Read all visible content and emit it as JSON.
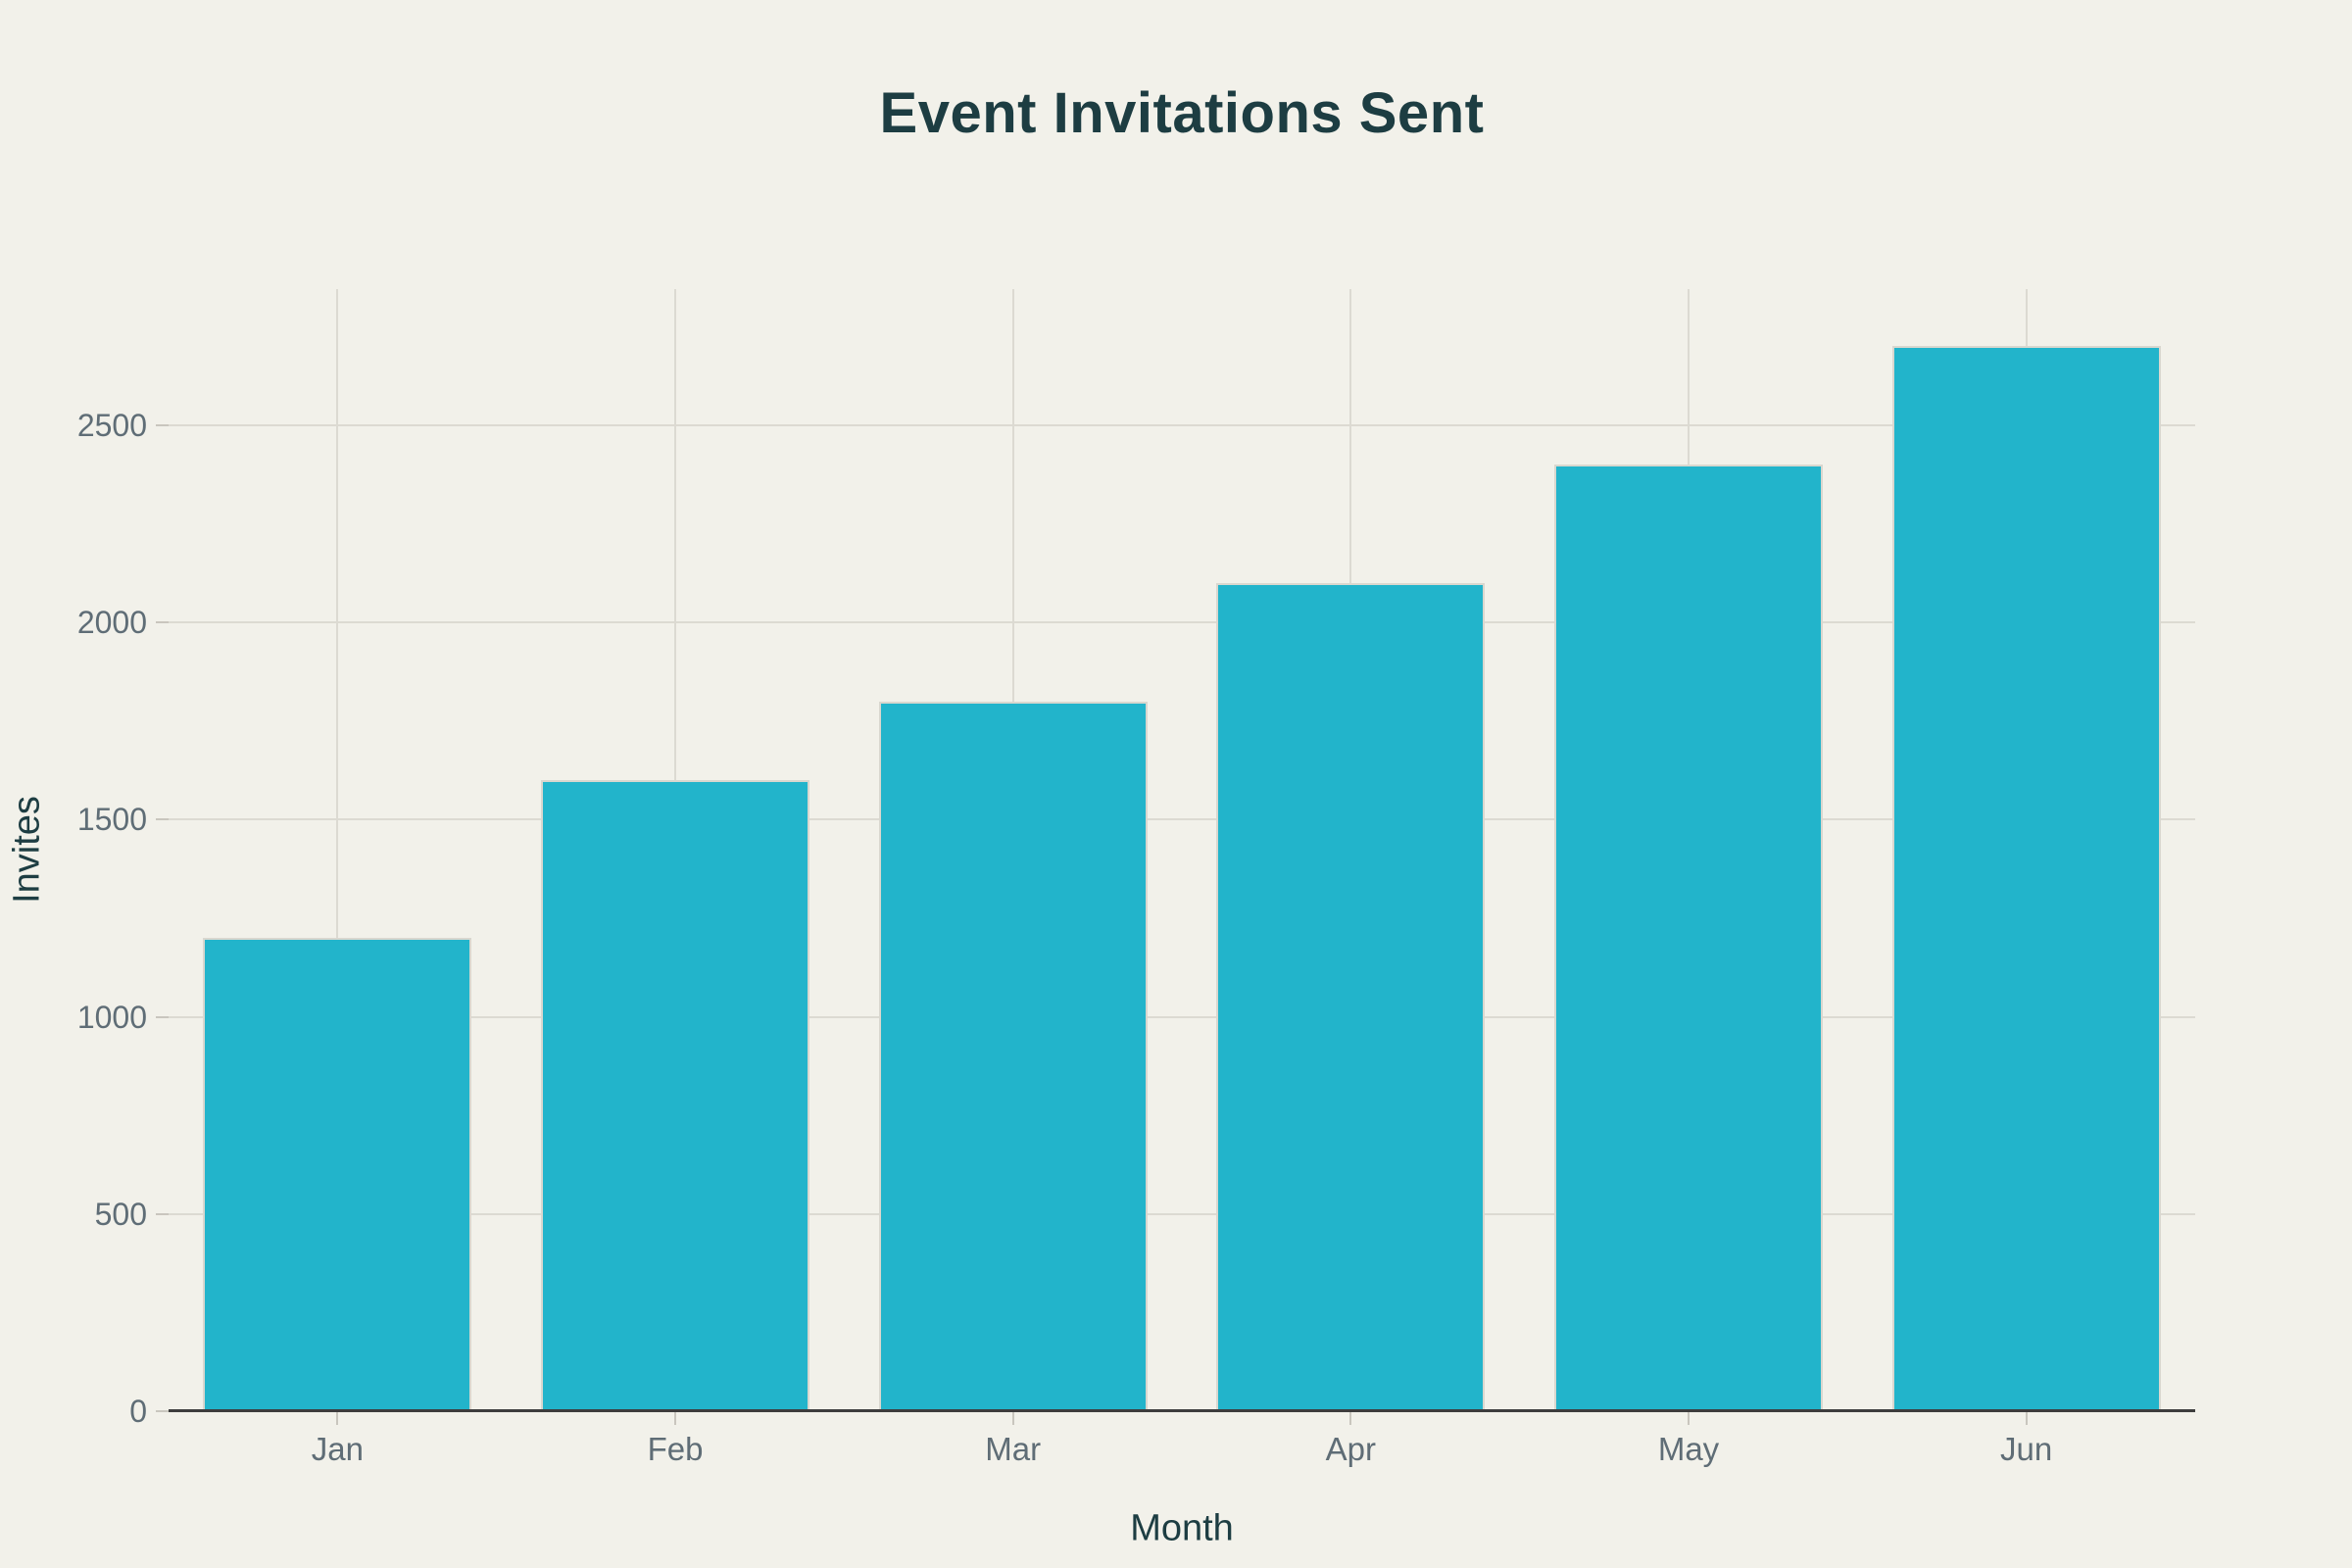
{
  "colors": {
    "background": "#f2f1ea",
    "bar": "#22b4cb",
    "bar_edge": "#d9d7cf",
    "gridline": "#dcdad2",
    "axis_line": "#3d3d3d",
    "title_text": "#1d3d42",
    "tick_text": "#5f6d76"
  },
  "chart_data": {
    "type": "bar",
    "title": "Event Invitations Sent",
    "xlabel": "Month",
    "ylabel": "Invites",
    "categories": [
      "Jan",
      "Feb",
      "Mar",
      "Apr",
      "May",
      "Jun"
    ],
    "values": [
      1200,
      1600,
      1800,
      2100,
      2400,
      2700
    ],
    "yticks": [
      0,
      500,
      1000,
      1500,
      2000,
      2500
    ],
    "ylim": [
      0,
      2845
    ],
    "grid": true,
    "legend_position": "none",
    "bar_color": "#22b4cb"
  }
}
